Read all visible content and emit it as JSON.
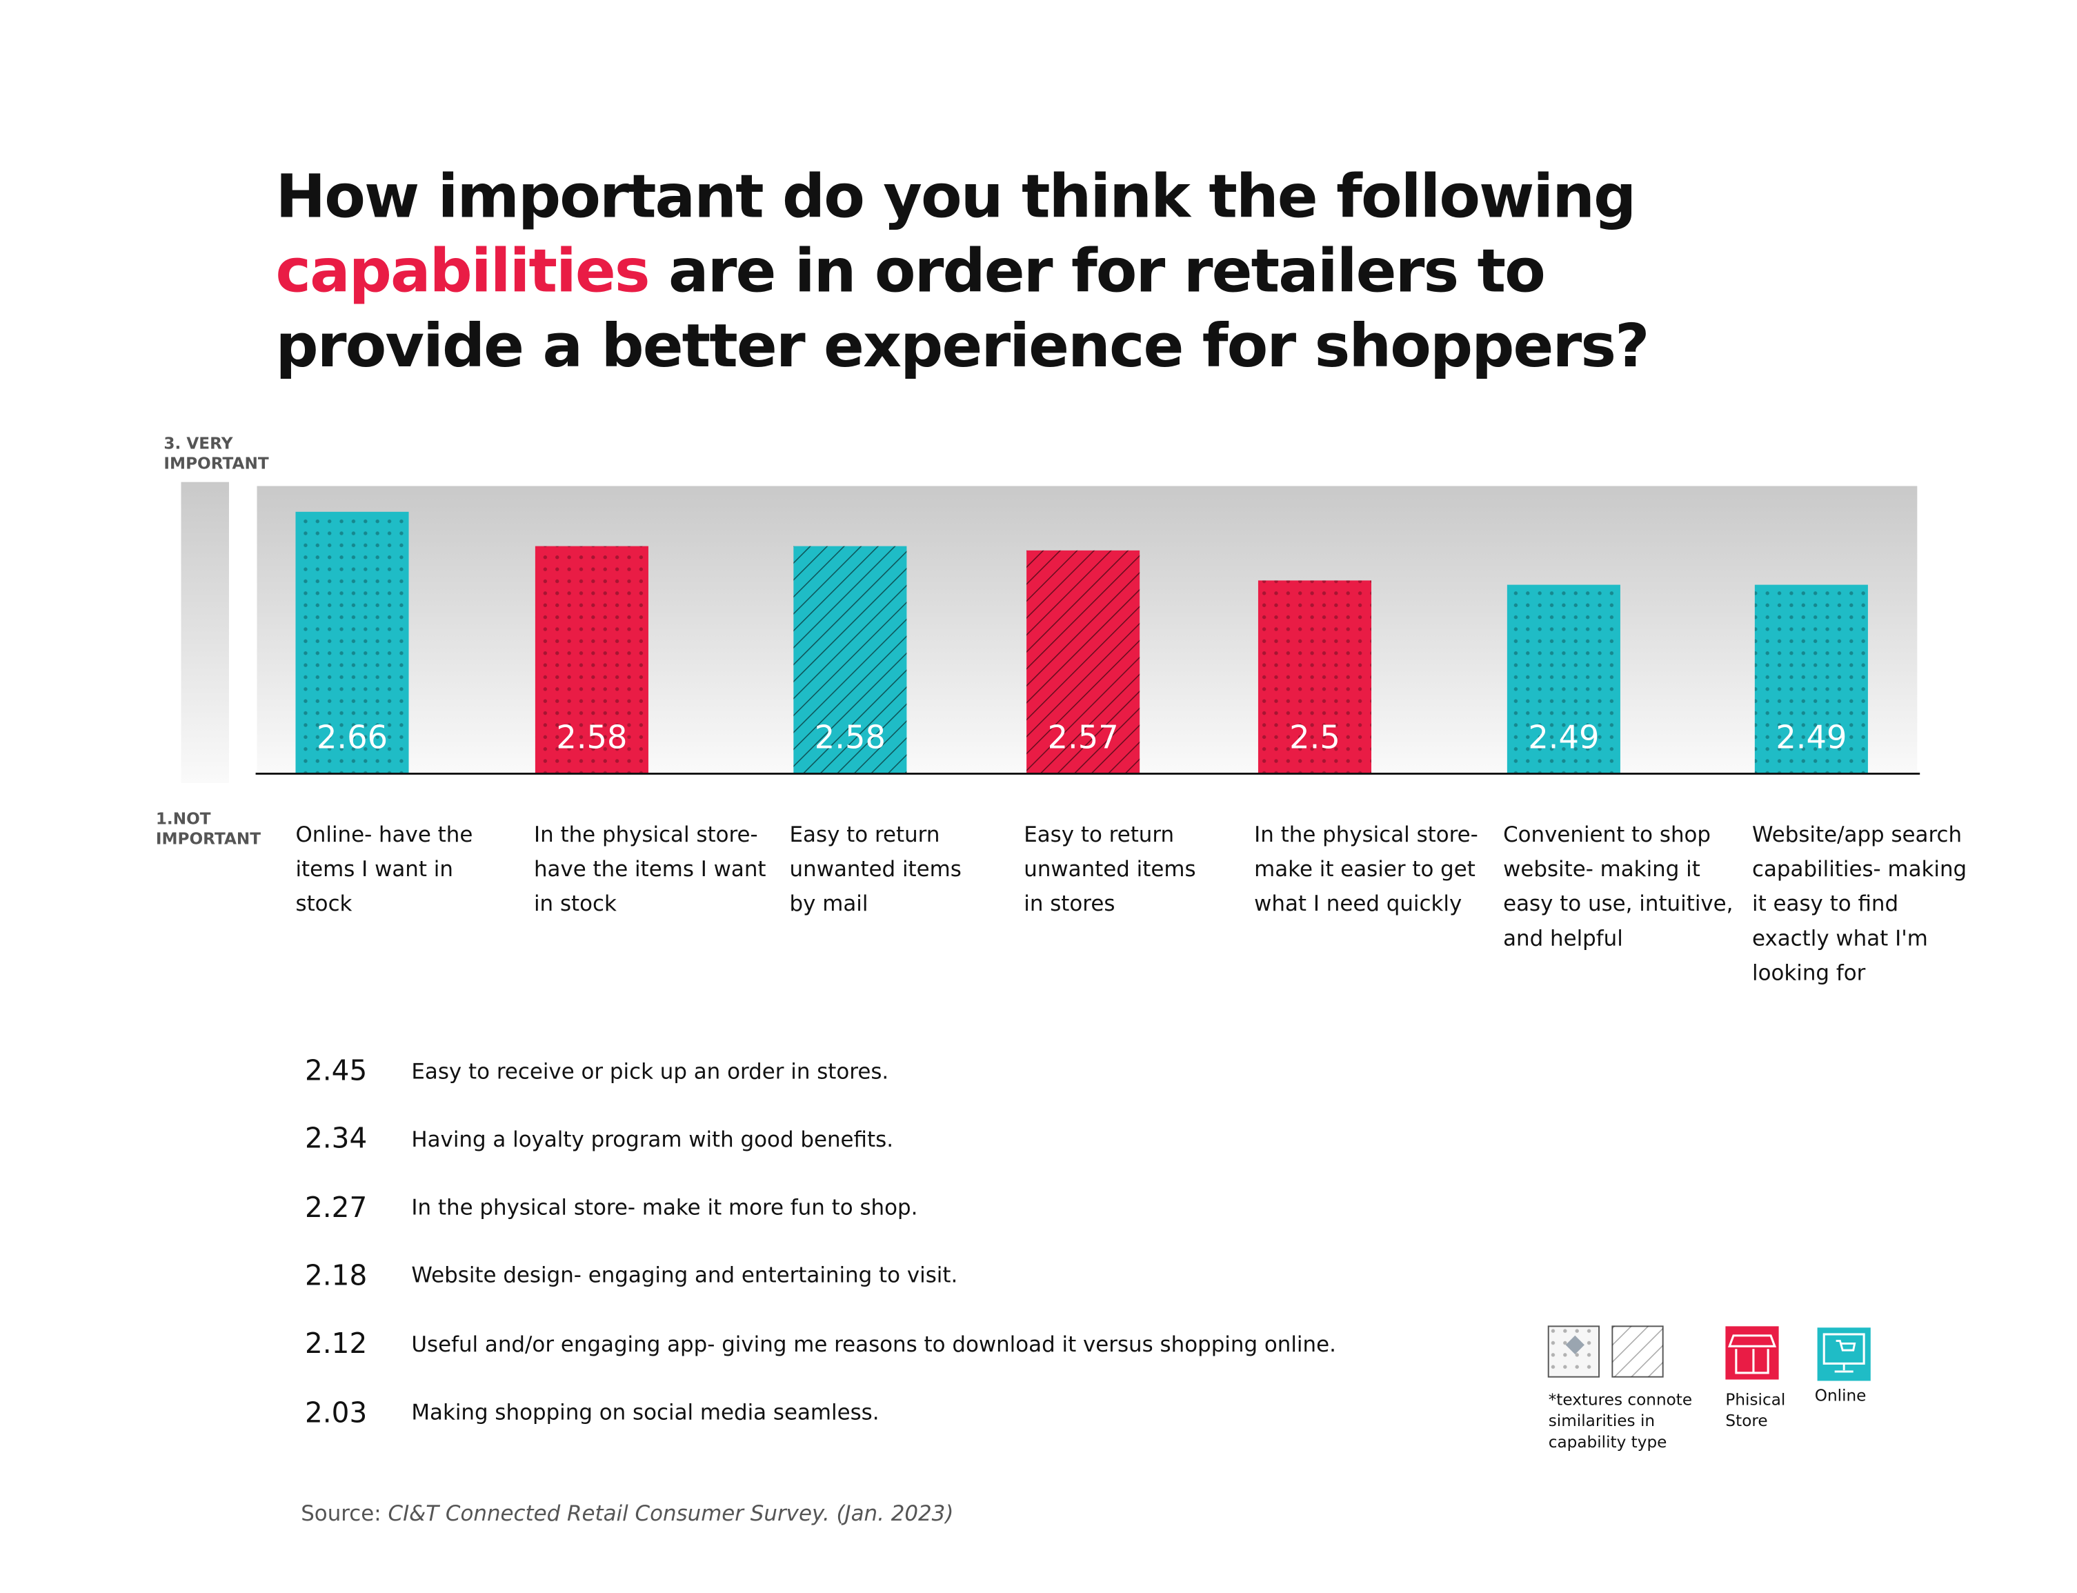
{
  "title": {
    "part1": "How important do you think the following",
    "accent": "capabilities",
    "part2": " are in order for retailers to provide a better experience for shoppers?"
  },
  "colors": {
    "online": "#1fbcc6",
    "physical_store": "#e91c45",
    "accent": "#e91c45"
  },
  "chart_data": {
    "type": "bar",
    "ylabel_top": "3. VERY IMPORTANT",
    "ylabel_bottom": "1.NOT IMPORTANT",
    "ylim": [
      2.05,
      2.72
    ],
    "categories": [
      "Online- have the items I want in stock",
      "In the physical store- have the items I want in stock",
      "Easy to return unwanted items by mail",
      "Easy to return unwanted items in stores",
      "In the physical store- make it easier to get what I need quickly",
      "Convenient to shop website- making it easy to use, intuitive, and helpful",
      "Website/app search capabilities- making it easy to find exactly what I'm looking for"
    ],
    "values": [
      2.66,
      2.58,
      2.58,
      2.57,
      2.5,
      2.49,
      2.49
    ],
    "value_labels": [
      "2.66",
      "2.58",
      "2.58",
      "2.57",
      "2.5",
      "2.49",
      "2.49"
    ],
    "channel": [
      "online",
      "physical_store",
      "online",
      "physical_store",
      "physical_store",
      "online",
      "online"
    ],
    "texture": [
      "dots",
      "dots",
      "stripes",
      "stripes",
      "dots",
      "dots",
      "dots"
    ]
  },
  "other_results": [
    {
      "value": "2.45",
      "label": "Easy to receive or pick up an order in stores."
    },
    {
      "value": "2.34",
      "label": "Having a loyalty program with good benefits."
    },
    {
      "value": "2.27",
      "label": "In the physical store- make it more fun to shop."
    },
    {
      "value": "2.18",
      "label": "Website design- engaging and entertaining to visit."
    },
    {
      "value": "2.12",
      "label": "Useful and/or engaging app- giving me reasons to download it versus shopping online."
    },
    {
      "value": "2.03",
      "label": "Making shopping on social media seamless."
    }
  ],
  "legend": {
    "texture_note": "*textures connote similarities in capability type",
    "physical_store": "Phisical Store",
    "online": "Online",
    "icons": [
      "dots-texture",
      "stripes-texture",
      "storefront-icon",
      "monitor-cart-icon"
    ]
  },
  "source": {
    "prefix": "Source: ",
    "text": "CI&T Connected Retail Consumer Survey. (Jan. 2023)"
  }
}
